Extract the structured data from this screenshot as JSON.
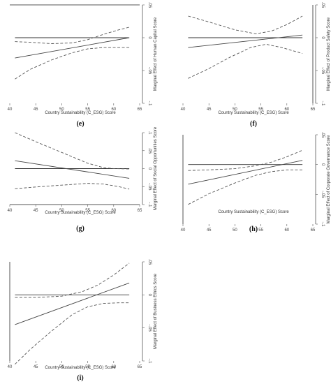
{
  "chart_data": [
    {
      "type": "line",
      "panel_label": "(e)",
      "xlabel": "Country Sustainability (C_ESG) Score",
      "ylabel": "Marginal Effect of Human Capital Score",
      "xlim": [
        40,
        65
      ],
      "ylim": [
        -0.1,
        0.05
      ],
      "xticks": [
        40,
        45,
        50,
        55,
        60,
        65
      ],
      "yticks": [
        -0.1,
        -0.05,
        0,
        0.05
      ],
      "ytick_labels": [
        "-.1",
        "-.05",
        "0",
        ".05"
      ],
      "reference_line": 0,
      "series": [
        {
          "role": "estimate",
          "style": "solid",
          "x": [
            41,
            63
          ],
          "y": [
            -0.031,
            0.0
          ]
        },
        {
          "role": "upper_ci",
          "style": "dashed",
          "x": [
            41,
            44,
            48,
            52,
            55,
            58,
            61,
            63
          ],
          "y": [
            -0.006,
            -0.007,
            -0.009,
            -0.008,
            -0.003,
            0.005,
            0.012,
            0.016
          ]
        },
        {
          "role": "lower_ci",
          "style": "dashed",
          "x": [
            41,
            44,
            48,
            52,
            55,
            58,
            61,
            63
          ],
          "y": [
            -0.063,
            -0.048,
            -0.034,
            -0.023,
            -0.017,
            -0.015,
            -0.015,
            -0.015
          ]
        }
      ]
    },
    {
      "type": "line",
      "panel_label": "(f)",
      "xlabel": "Country Sustainability (C_ESG) Score",
      "ylabel": "Marginal Effect of Product Safety Score",
      "xlim": [
        40,
        65
      ],
      "ylim": [
        -0.1,
        0.05
      ],
      "xticks": [
        40,
        45,
        50,
        55,
        60,
        65
      ],
      "yticks": [
        -0.1,
        -0.05,
        0,
        0.05
      ],
      "ytick_labels": [
        "-.1",
        "-.05",
        "0",
        ".05"
      ],
      "reference_line": 0,
      "series": [
        {
          "role": "estimate",
          "style": "solid",
          "x": [
            41,
            63
          ],
          "y": [
            -0.015,
            0.004
          ]
        },
        {
          "role": "upper_ci",
          "style": "dashed",
          "x": [
            41,
            45,
            50,
            54,
            57,
            60,
            63
          ],
          "y": [
            0.033,
            0.024,
            0.012,
            0.006,
            0.01,
            0.02,
            0.033
          ]
        },
        {
          "role": "lower_ci",
          "style": "dashed",
          "x": [
            41,
            45,
            49,
            53,
            56,
            59,
            63
          ],
          "y": [
            -0.062,
            -0.047,
            -0.03,
            -0.015,
            -0.01,
            -0.015,
            -0.024
          ]
        }
      ]
    },
    {
      "type": "line",
      "panel_label": "(g)",
      "xlabel": "Country Sustainability (C_ESG) Score",
      "ylabel": "Marginal Effect of Social Opportunities Score",
      "xlim": [
        40,
        65
      ],
      "ylim": [
        -0.1,
        0.1
      ],
      "xticks": [
        40,
        45,
        50,
        55,
        60,
        65
      ],
      "yticks": [
        -0.1,
        -0.05,
        0,
        0.05,
        0.1
      ],
      "ytick_labels": [
        "-.1",
        "-.05",
        "0",
        ".05",
        ".1"
      ],
      "reference_line": 0,
      "series": [
        {
          "role": "estimate",
          "style": "solid",
          "x": [
            41,
            63
          ],
          "y": [
            0.022,
            -0.027
          ]
        },
        {
          "role": "upper_ci",
          "style": "dashed",
          "x": [
            41,
            45,
            50,
            55,
            58,
            60,
            63
          ],
          "y": [
            0.1,
            0.075,
            0.045,
            0.015,
            0.003,
            0.0,
            -0.001
          ]
        },
        {
          "role": "lower_ci",
          "style": "dashed",
          "x": [
            41,
            45,
            50,
            55,
            58,
            61,
            63
          ],
          "y": [
            -0.056,
            -0.051,
            -0.046,
            -0.041,
            -0.043,
            -0.05,
            -0.057
          ]
        }
      ]
    },
    {
      "type": "line",
      "panel_label": "(h)",
      "xlabel": "Country Sustainability (C_ESG) Score",
      "ylabel": "Marginal Effect of Corporate Governance Score",
      "xlim": [
        40,
        65
      ],
      "ylim": [
        -0.1,
        0.05
      ],
      "xticks": [
        40,
        45,
        50,
        55,
        60,
        65
      ],
      "yticks": [
        -0.1,
        -0.05,
        0,
        0.05
      ],
      "ytick_labels": [
        "-.1",
        "-.05",
        "0",
        ".05"
      ],
      "reference_line": 0,
      "series": [
        {
          "role": "estimate",
          "style": "solid",
          "x": [
            41,
            63
          ],
          "y": [
            -0.033,
            0.007
          ]
        },
        {
          "role": "upper_ci",
          "style": "dashed",
          "x": [
            41,
            45,
            50,
            54,
            57,
            60,
            63
          ],
          "y": [
            -0.01,
            -0.009,
            -0.007,
            -0.002,
            0.004,
            0.013,
            0.024
          ]
        },
        {
          "role": "lower_ci",
          "style": "dashed",
          "x": [
            41,
            45,
            50,
            54,
            57,
            60,
            63
          ],
          "y": [
            -0.067,
            -0.049,
            -0.031,
            -0.018,
            -0.012,
            -0.009,
            -0.009
          ]
        }
      ]
    },
    {
      "type": "line",
      "panel_label": "(i)",
      "xlabel": "Country Sustainability (C_ESG) Score",
      "ylabel": "Marginal Effect of Business Ethics Score",
      "xlim": [
        40,
        65
      ],
      "ylim": [
        -0.1,
        0.05
      ],
      "xticks": [
        40,
        45,
        50,
        55,
        60,
        65
      ],
      "yticks": [
        -0.1,
        -0.05,
        0,
        0.05
      ],
      "ytick_labels": [
        "-.1",
        "-.05",
        "0",
        ".05"
      ],
      "reference_line": 0,
      "series": [
        {
          "role": "estimate",
          "style": "solid",
          "x": [
            41,
            63
          ],
          "y": [
            -0.045,
            0.018
          ]
        },
        {
          "role": "upper_ci",
          "style": "dashed",
          "x": [
            41,
            45,
            50,
            54,
            57,
            60,
            63
          ],
          "y": [
            -0.004,
            -0.004,
            -0.002,
            0.005,
            0.015,
            0.03,
            0.048
          ]
        },
        {
          "role": "lower_ci",
          "style": "dashed",
          "x": [
            41,
            44,
            48,
            52,
            55,
            58,
            61,
            63
          ],
          "y": [
            -0.105,
            -0.082,
            -0.055,
            -0.03,
            -0.018,
            -0.013,
            -0.012,
            -0.012
          ]
        }
      ]
    }
  ]
}
